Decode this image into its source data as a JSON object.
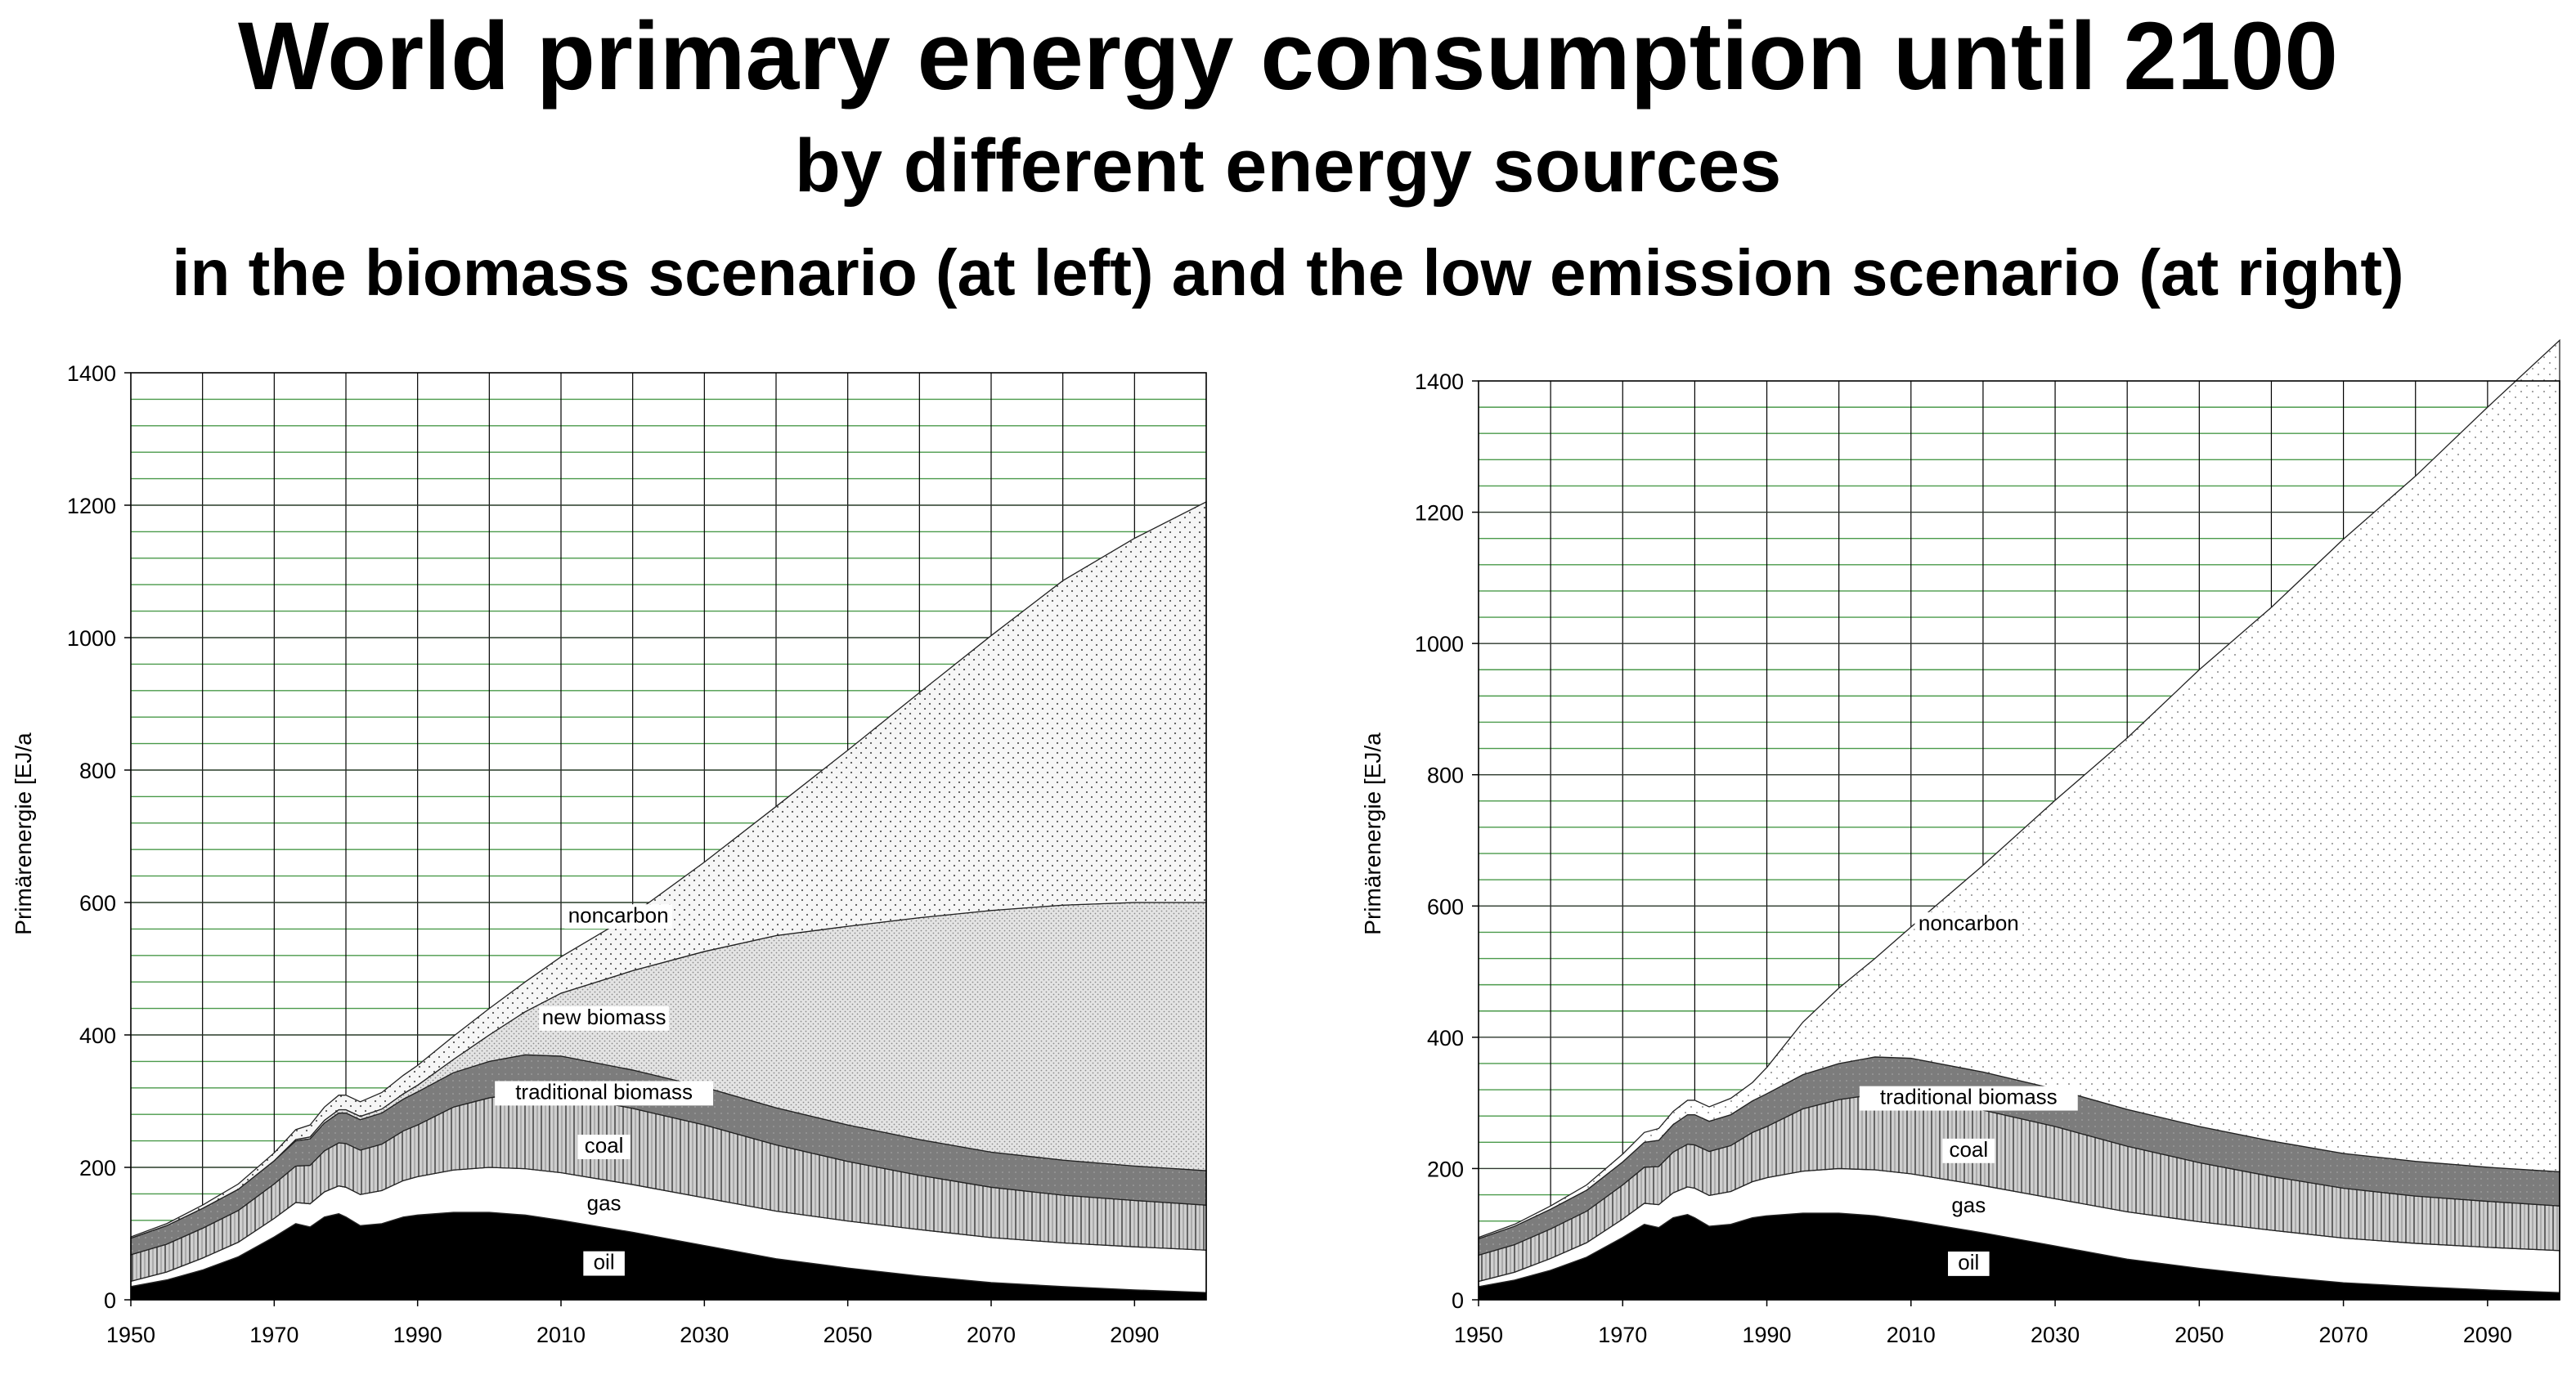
{
  "title": "World primary energy consumption until 2100",
  "subtitle": "by different energy sources",
  "subtitle2": "in the biomass scenario (at left) and the low emission scenario (at right)",
  "colors": {
    "background": "#ffffff",
    "grid_major": "#000000",
    "grid_minor": "#4a9a4a",
    "oil": "#000000",
    "gas": "#ffffff",
    "coal": "#c8c8c8",
    "traditional_biomass": "#7a7a7a",
    "new_biomass": "#e2e2e2",
    "noncarbon": "#f0f0f0"
  },
  "chart_data": [
    {
      "type": "area",
      "stacked": true,
      "name": "biomass scenario",
      "ylabel": "Primärenergie  [EJ/a",
      "xlim": [
        1950,
        2100
      ],
      "ylim": [
        0,
        1400
      ],
      "x_ticks": [
        "1950",
        "1970",
        "1990",
        "2010",
        "2030",
        "2050",
        "2070",
        "2090"
      ],
      "y_ticks": [
        "0",
        "200",
        "400",
        "600",
        "800",
        "1000",
        "1200",
        "1400"
      ],
      "x": [
        1950,
        1955,
        1960,
        1965,
        1970,
        1973,
        1975,
        1977,
        1979,
        1980,
        1982,
        1985,
        1988,
        1990,
        1995,
        2000,
        2005,
        2010,
        2020,
        2030,
        2040,
        2050,
        2060,
        2070,
        2080,
        2090,
        2100
      ],
      "series": [
        {
          "name": "oil",
          "label": "oil",
          "values": [
            20,
            30,
            45,
            65,
            95,
            115,
            110,
            125,
            130,
            125,
            112,
            115,
            125,
            128,
            132,
            132,
            128,
            120,
            102,
            82,
            62,
            48,
            36,
            26,
            20,
            15,
            11
          ]
        },
        {
          "name": "gas",
          "label": "gas",
          "values": [
            8,
            12,
            18,
            22,
            28,
            32,
            35,
            38,
            42,
            45,
            47,
            50,
            55,
            58,
            64,
            68,
            70,
            72,
            72,
            72,
            72,
            71,
            70,
            68,
            66,
            65,
            64
          ]
        },
        {
          "name": "coal",
          "label": "coal",
          "values": [
            40,
            42,
            45,
            48,
            52,
            55,
            58,
            62,
            65,
            66,
            67,
            70,
            75,
            78,
            95,
            105,
            115,
            118,
            115,
            110,
            100,
            90,
            82,
            76,
            72,
            70,
            68
          ]
        },
        {
          "name": "traditional_biomass",
          "label": "traditional biomass",
          "values": [
            25,
            28,
            30,
            32,
            35,
            38,
            40,
            42,
            45,
            46,
            46,
            47,
            48,
            50,
            52,
            55,
            57,
            58,
            58,
            57,
            56,
            55,
            54,
            53,
            53,
            52,
            52
          ]
        },
        {
          "name": "new_biomass",
          "label": "new biomass",
          "values": [
            0,
            0,
            0,
            0,
            0,
            2,
            3,
            4,
            5,
            5,
            5,
            6,
            8,
            10,
            20,
            40,
            65,
            95,
            150,
            205,
            260,
            300,
            335,
            365,
            385,
            398,
            405
          ]
        },
        {
          "name": "noncarbon",
          "label": "noncarbon",
          "values": [
            2,
            3,
            5,
            8,
            12,
            15,
            18,
            20,
            22,
            22,
            22,
            25,
            28,
            30,
            35,
            40,
            45,
            55,
            85,
            135,
            195,
            266,
            340,
            415,
            490,
            550,
            605
          ]
        }
      ],
      "annotations": [
        "noncarbon",
        "new biomass",
        "traditional biomass",
        "coal",
        "gas",
        "oil"
      ]
    },
    {
      "type": "area",
      "stacked": true,
      "name": "low emission scenario",
      "ylabel": "Primärenergie  [EJ/a",
      "xlim": [
        1950,
        2100
      ],
      "ylim": [
        0,
        1400
      ],
      "x_ticks": [
        "1950",
        "1970",
        "1990",
        "2010",
        "2030",
        "2050",
        "2070",
        "2090"
      ],
      "y_ticks": [
        "0",
        "200",
        "400",
        "600",
        "800",
        "1000",
        "1200",
        "1400"
      ],
      "x": [
        1950,
        1955,
        1960,
        1965,
        1970,
        1973,
        1975,
        1977,
        1979,
        1980,
        1982,
        1985,
        1988,
        1990,
        1995,
        2000,
        2005,
        2010,
        2020,
        2030,
        2040,
        2050,
        2060,
        2070,
        2080,
        2090,
        2100
      ],
      "series": [
        {
          "name": "oil",
          "label": "oil",
          "values": [
            20,
            30,
            45,
            65,
            95,
            115,
            110,
            125,
            130,
            125,
            112,
            115,
            125,
            128,
            132,
            132,
            128,
            120,
            102,
            82,
            62,
            48,
            36,
            26,
            20,
            15,
            11
          ]
        },
        {
          "name": "gas",
          "label": "gas",
          "values": [
            8,
            12,
            18,
            22,
            28,
            32,
            35,
            38,
            42,
            45,
            47,
            50,
            55,
            58,
            64,
            68,
            70,
            72,
            72,
            72,
            72,
            71,
            70,
            68,
            66,
            65,
            64
          ]
        },
        {
          "name": "coal",
          "label": "coal",
          "values": [
            40,
            42,
            45,
            48,
            52,
            55,
            58,
            62,
            65,
            66,
            67,
            70,
            75,
            78,
            95,
            105,
            115,
            118,
            115,
            110,
            100,
            90,
            82,
            76,
            72,
            70,
            68
          ]
        },
        {
          "name": "traditional_biomass",
          "label": "traditional biomass",
          "values": [
            25,
            28,
            30,
            32,
            35,
            38,
            40,
            42,
            45,
            46,
            46,
            47,
            48,
            50,
            52,
            55,
            57,
            58,
            58,
            57,
            56,
            55,
            54,
            53,
            53,
            52,
            52
          ]
        },
        {
          "name": "noncarbon",
          "label": "noncarbon",
          "values": [
            2,
            3,
            5,
            8,
            12,
            15,
            18,
            20,
            22,
            22,
            22,
            25,
            28,
            40,
            80,
            115,
            150,
            200,
            315,
            440,
            566,
            696,
            813,
            936,
            1044,
            1158,
            1267
          ]
        }
      ],
      "annotations": [
        "noncarbon",
        "traditional biomass",
        "coal",
        "gas",
        "oil"
      ]
    }
  ]
}
